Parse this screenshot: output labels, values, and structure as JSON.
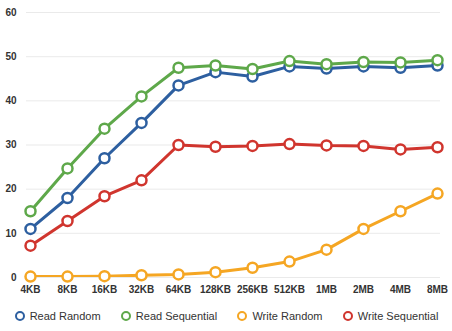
{
  "chart_data": {
    "type": "line",
    "categories": [
      "4KB",
      "8KB",
      "16KB",
      "32KB",
      "64KB",
      "128KB",
      "256KB",
      "512KB",
      "1MB",
      "2MB",
      "4MB",
      "8MB"
    ],
    "series": [
      {
        "name": "Read Random",
        "color": "#2d5fa0",
        "values": [
          11,
          18,
          27,
          35,
          43.5,
          46.5,
          45.5,
          47.8,
          47.3,
          47.8,
          47.5,
          48
        ]
      },
      {
        "name": "Read Sequential",
        "color": "#5ea84a",
        "values": [
          15,
          24.7,
          33.7,
          41,
          47.5,
          48,
          47.2,
          49,
          48.3,
          48.8,
          48.7,
          49.2
        ]
      },
      {
        "name": "Write Random",
        "color": "#f5a623",
        "values": [
          0.2,
          0.2,
          0.3,
          0.5,
          0.7,
          1.2,
          2.2,
          3.6,
          6.3,
          11,
          15,
          19
        ]
      },
      {
        "name": "Write Sequential",
        "color": "#d0352e",
        "values": [
          7.2,
          12.8,
          18.4,
          22,
          30,
          29.6,
          29.8,
          30.2,
          29.9,
          29.8,
          29,
          29.5
        ]
      }
    ],
    "ylim": [
      0,
      60
    ],
    "yticks": [
      0,
      10,
      20,
      30,
      40,
      50,
      60
    ],
    "grid": true,
    "legend": "bottom",
    "marker": "circle"
  }
}
